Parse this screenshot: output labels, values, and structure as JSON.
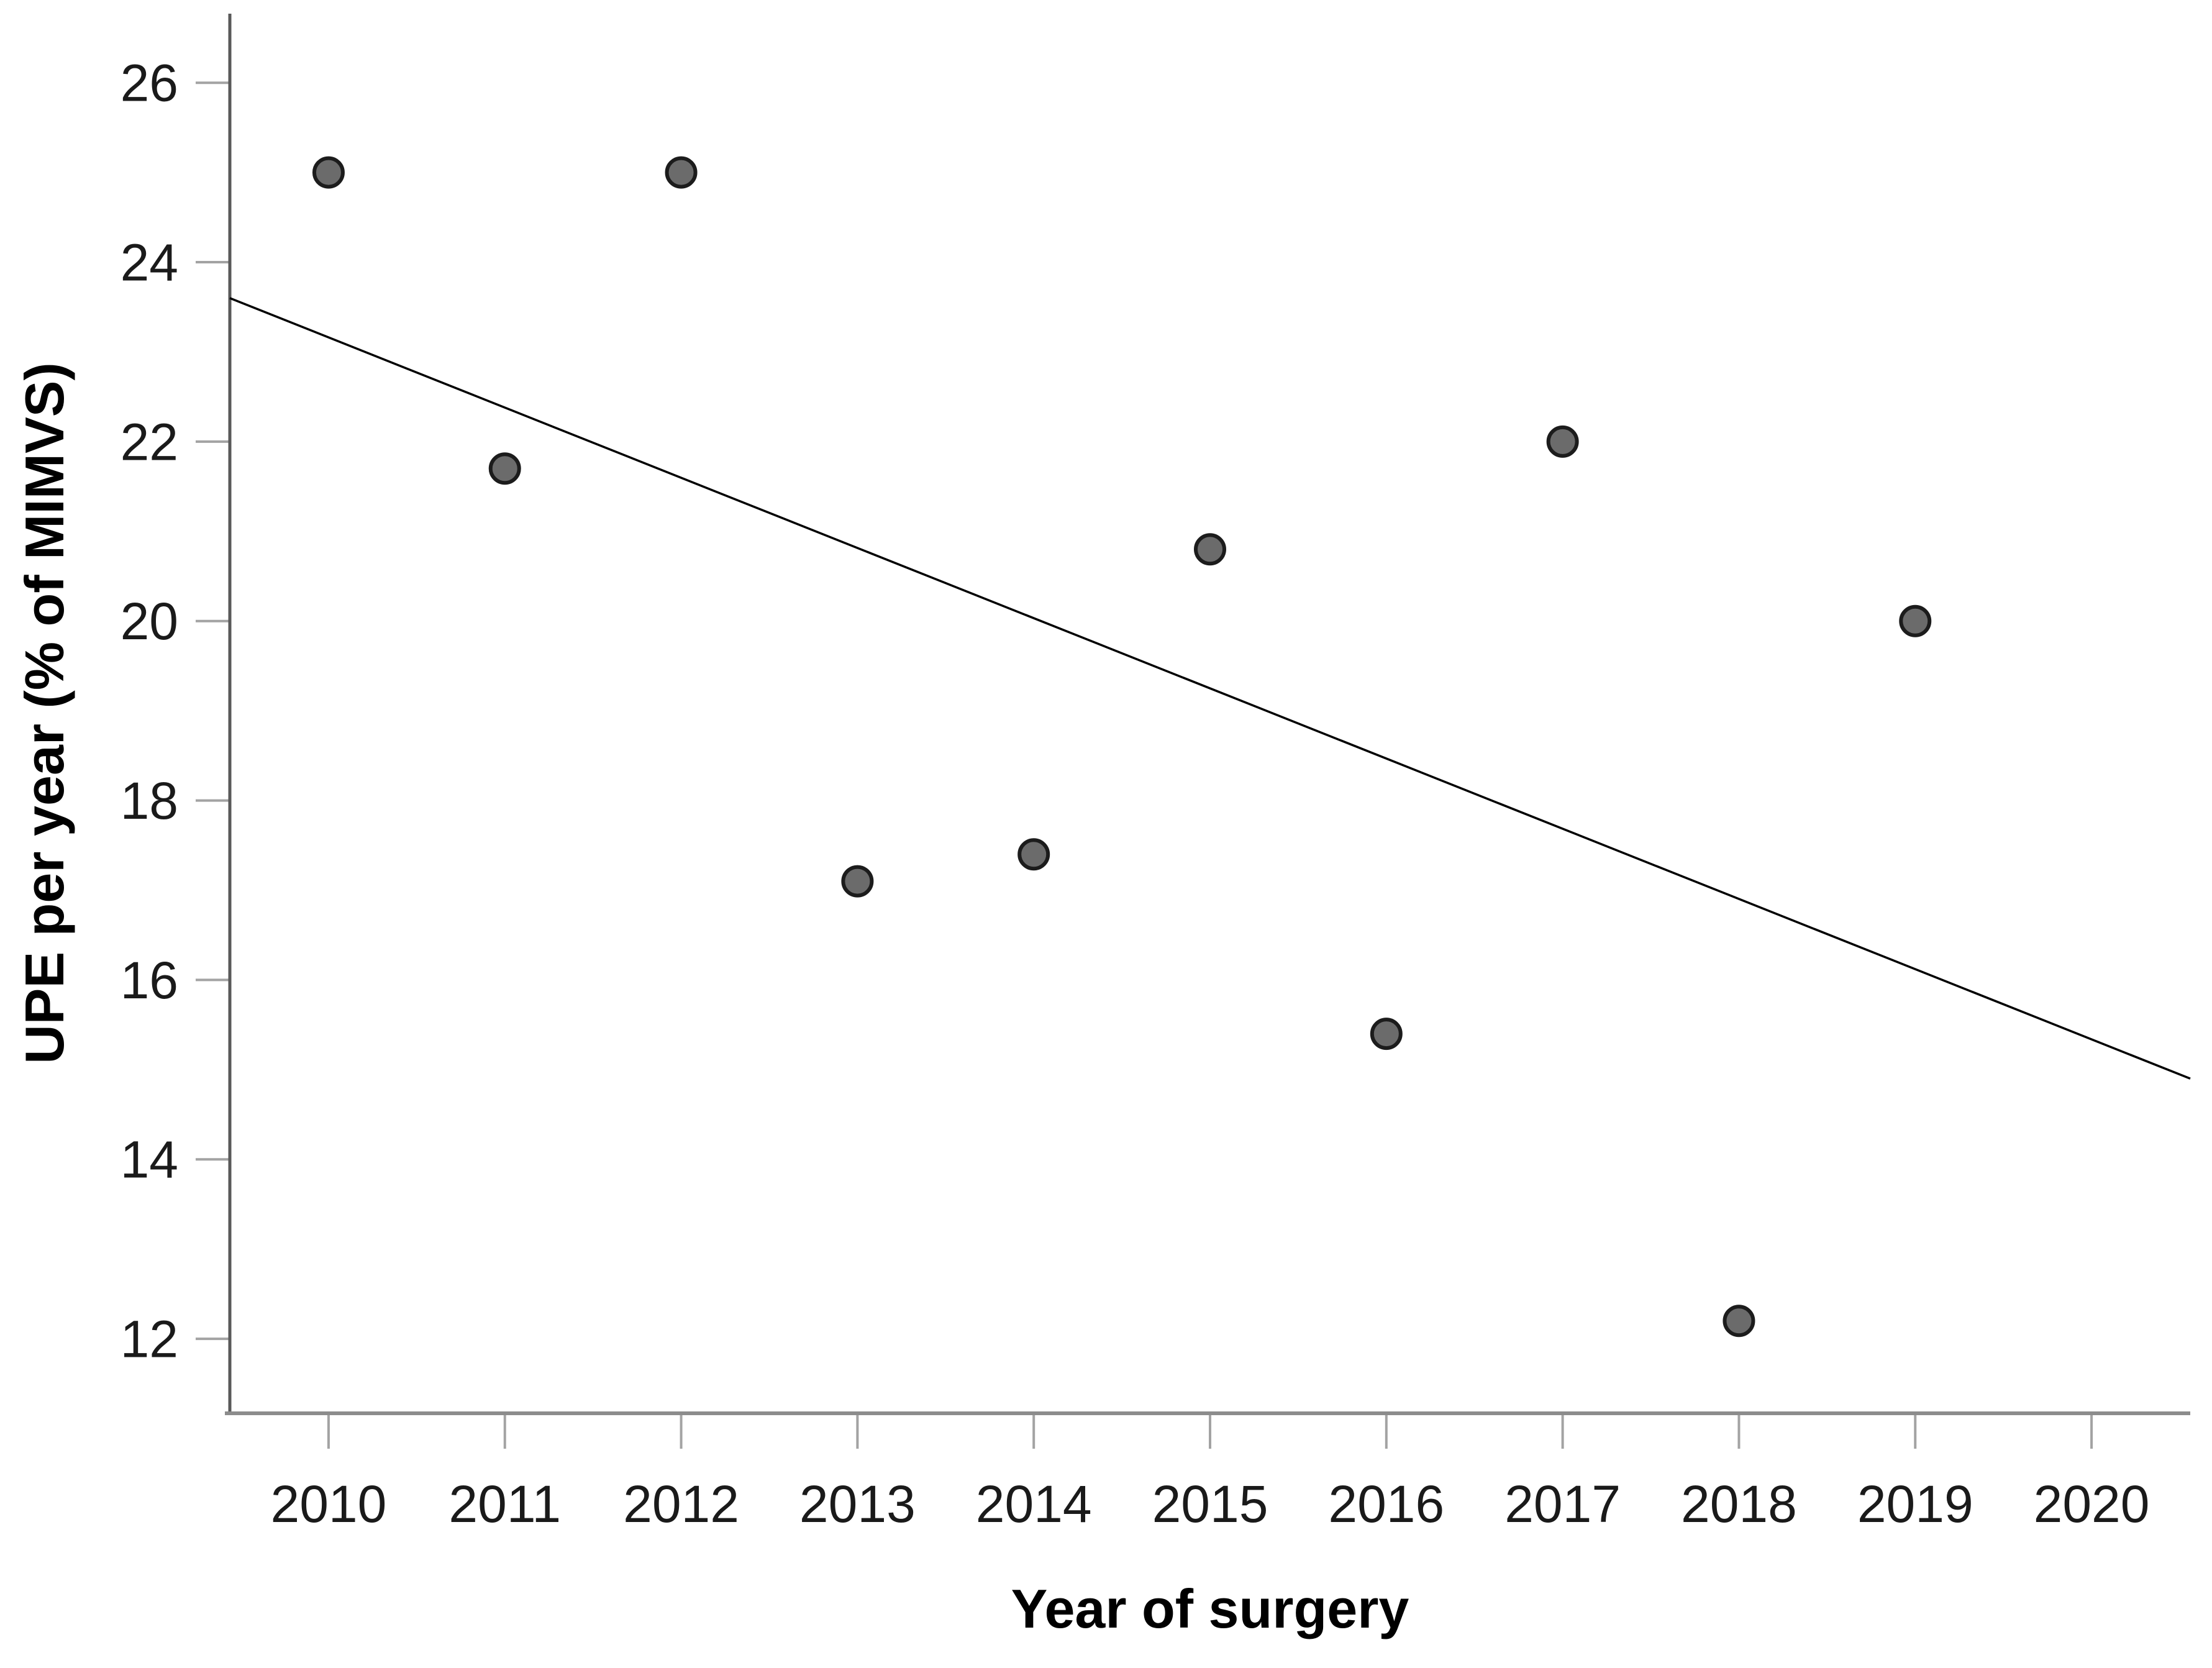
{
  "chart_data": {
    "type": "scatter",
    "title": "",
    "xlabel": "Year of surgery",
    "ylabel": "UPE per year (% of MIMVS)",
    "x_ticks": [
      "2010",
      "2011",
      "2012",
      "2013",
      "2014",
      "2015",
      "2016",
      "2017",
      "2018",
      "2019",
      "2020"
    ],
    "y_ticks": [
      "12",
      "14",
      "16",
      "18",
      "20",
      "22",
      "24",
      "26"
    ],
    "xlim": [
      2009.44,
      2020.56
    ],
    "ylim": [
      11.17,
      26.77
    ],
    "grid": false,
    "legend": "none",
    "series": [
      {
        "name": "UPE per year (% of MIMVS)",
        "points": [
          {
            "x": 2010,
            "y": 25.0
          },
          {
            "x": 2011,
            "y": 21.7
          },
          {
            "x": 2012,
            "y": 25.0
          },
          {
            "x": 2013,
            "y": 17.1
          },
          {
            "x": 2014,
            "y": 17.4
          },
          {
            "x": 2015,
            "y": 20.8
          },
          {
            "x": 2016,
            "y": 15.4
          },
          {
            "x": 2017,
            "y": 22.0
          },
          {
            "x": 2018,
            "y": 12.2
          },
          {
            "x": 2019,
            "y": 20.0
          }
        ]
      }
    ],
    "trend_line": {
      "x1": 2009.44,
      "y1": 23.6,
      "x2": 2020.56,
      "y2": 14.9
    },
    "colors": {
      "background": "#ffffff",
      "point_fill": "#6b6b6b",
      "point_stroke": "#1c1c1c",
      "trend_line": "#000000",
      "y_axis": "#595959",
      "x_axis": "#8c8c8c",
      "tick": "#a3a3a3",
      "tick_label": "#1a1a1a",
      "axis_title": "#000000"
    }
  }
}
